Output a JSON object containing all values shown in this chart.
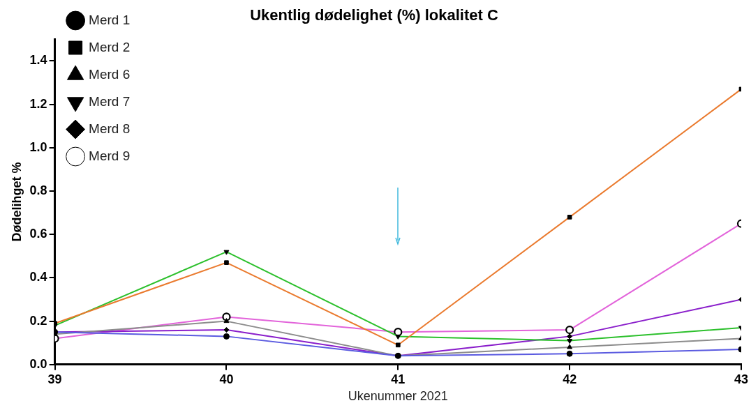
{
  "chart_data": {
    "type": "line",
    "title": "Ukentlig dødelighet (%) lokalitet C",
    "xlabel": "Ukenummer 2021",
    "ylabel": "Dødelihget %",
    "x": [
      39,
      40,
      41,
      42,
      43
    ],
    "series": [
      {
        "name": "Merd 1",
        "color": "#5b5be0",
        "marker": "circle",
        "values": [
          0.15,
          0.13,
          0.04,
          0.05,
          0.07
        ]
      },
      {
        "name": "Merd 2",
        "color": "#ea7a2e",
        "marker": "square",
        "values": [
          0.19,
          0.47,
          0.09,
          0.68,
          1.27
        ]
      },
      {
        "name": "Merd 6",
        "color": "#8c8c8c",
        "marker": "triangle",
        "values": [
          0.14,
          0.2,
          0.04,
          0.08,
          0.12
        ]
      },
      {
        "name": "Merd 7",
        "color": "#2cc02c",
        "marker": "triangle-down",
        "values": [
          0.18,
          0.52,
          0.13,
          0.11,
          0.17
        ]
      },
      {
        "name": "Merd 8",
        "color": "#8a1ecb",
        "marker": "diamond",
        "values": [
          0.15,
          0.16,
          0.04,
          0.13,
          0.3
        ]
      },
      {
        "name": "Merd 9",
        "color": "#e263da",
        "marker": "circle-open",
        "values": [
          0.12,
          0.22,
          0.15,
          0.16,
          0.65
        ]
      }
    ],
    "xlim": [
      39,
      43
    ],
    "xticks": [
      39,
      40,
      41,
      42,
      43
    ],
    "ylim": [
      0,
      1.5
    ],
    "yticks": [
      {
        "value": 0,
        "label": "0.0"
      },
      {
        "value": 0.2,
        "label": "0.2"
      },
      {
        "value": 0.4,
        "label": "0.4"
      },
      {
        "value": 0.6,
        "label": "0.6"
      },
      {
        "value": 0.8,
        "label": "0.8"
      },
      {
        "value": 1,
        "label": "1.0"
      },
      {
        "value": 1.2,
        "label": "1.2"
      },
      {
        "value": 1.4,
        "label": "1.4"
      }
    ],
    "grid": false,
    "legend": "top left",
    "line_style": "solid"
  }
}
